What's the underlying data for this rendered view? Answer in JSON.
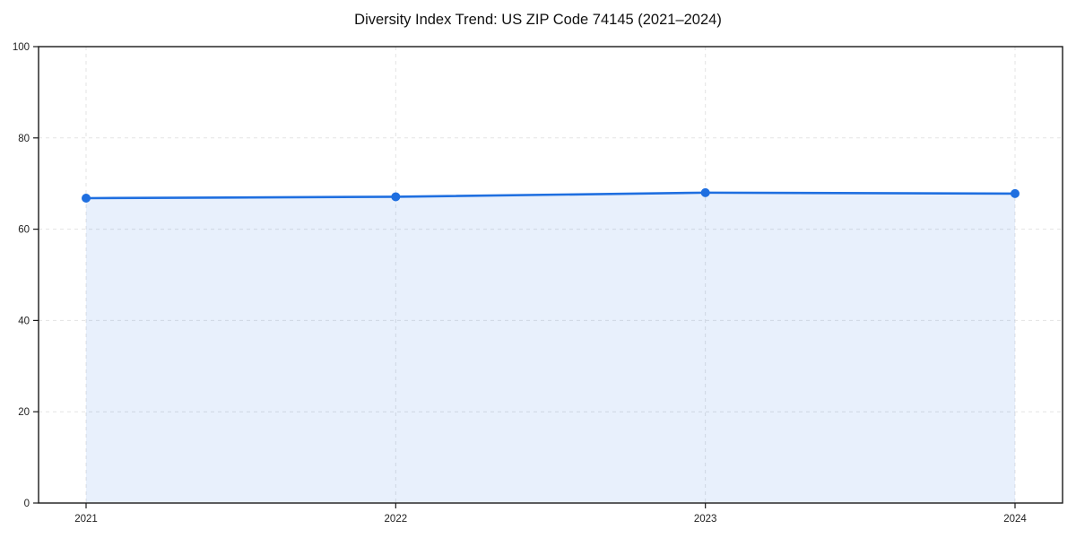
{
  "chart_data": {
    "type": "area",
    "title": "Diversity Index Trend: US ZIP Code 74145 (2021–2024)",
    "series_name": "Diversity Index",
    "x": [
      "2021",
      "2022",
      "2023",
      "2024"
    ],
    "values": [
      66.8,
      67.1,
      68.0,
      67.8
    ],
    "xlabel": "",
    "ylabel": "",
    "ylim": [
      0,
      100
    ],
    "yticks": [
      0,
      20,
      40,
      60,
      80,
      100
    ],
    "grid": true,
    "grid_style": "dashed",
    "legend": "none",
    "colors": {
      "line": "#1f6fe0",
      "marker": "#1f6fe0",
      "fill": "rgba(31, 111, 224, 0.10)",
      "grid": "#e3e3e3",
      "axis": "#1a1a1a",
      "tick_text": "#222222",
      "title_text": "#111111",
      "background": "#ffffff"
    }
  }
}
